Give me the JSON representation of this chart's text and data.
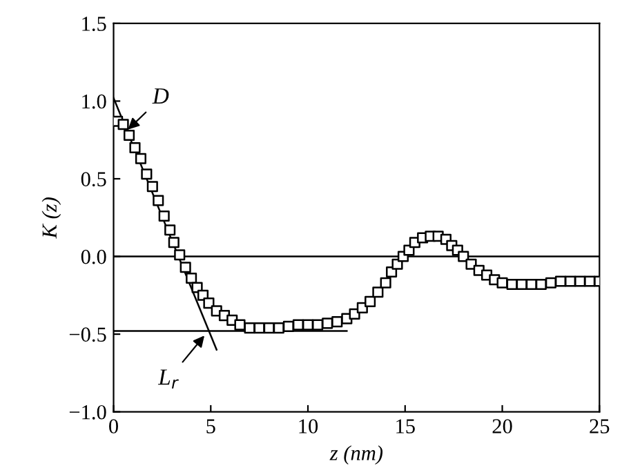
{
  "chart_data": {
    "type": "scatter",
    "xlabel": "z (nm)",
    "ylabel": "K (z)",
    "grid": false,
    "legend": false,
    "xlim": [
      0,
      25
    ],
    "xticks": [
      0,
      5,
      10,
      15,
      20,
      25
    ],
    "ylim": [
      -1.0,
      1.5
    ],
    "yticks": [
      {
        "value": -1.0,
        "label": "−1.0"
      },
      {
        "value": -0.5,
        "label": "−0.5"
      },
      {
        "value": 0.0,
        "label": "0.0"
      },
      {
        "value": 0.5,
        "label": "0.5"
      },
      {
        "value": 1.0,
        "label": "1.0"
      },
      {
        "value": 1.5,
        "label": "1.5"
      }
    ],
    "ref_lines": [
      {
        "axis": "y",
        "value": 0,
        "color": "#000000"
      }
    ],
    "series": [
      {
        "marker": "square",
        "color": "#000000",
        "x": [
          0.2,
          0.5,
          0.8,
          1.1,
          1.4,
          1.7,
          2.0,
          2.3,
          2.6,
          2.9,
          3.1,
          3.4,
          3.7,
          4.0,
          4.3,
          4.6,
          4.9,
          5.3,
          5.7,
          6.1,
          6.5,
          7.0,
          7.5,
          8.0,
          8.5,
          9.0,
          9.5,
          10.0,
          10.5,
          11.0,
          11.5,
          12.0,
          12.4,
          12.8,
          13.2,
          13.6,
          14.0,
          14.3,
          14.6,
          14.9,
          15.2,
          15.5,
          15.9,
          16.3,
          16.7,
          17.1,
          17.4,
          17.7,
          18.0,
          18.4,
          18.8,
          19.2,
          19.6,
          20.0,
          20.5,
          21.0,
          21.5,
          22.0,
          22.5,
          23.0,
          23.5,
          24.0,
          24.5,
          25.0
        ],
        "values": [
          0.87,
          0.85,
          0.78,
          0.7,
          0.63,
          0.53,
          0.45,
          0.36,
          0.26,
          0.17,
          0.09,
          0.01,
          -0.07,
          -0.14,
          -0.2,
          -0.25,
          -0.3,
          -0.35,
          -0.38,
          -0.41,
          -0.44,
          -0.46,
          -0.46,
          -0.46,
          -0.46,
          -0.45,
          -0.44,
          -0.44,
          -0.44,
          -0.43,
          -0.42,
          -0.4,
          -0.37,
          -0.33,
          -0.29,
          -0.23,
          -0.17,
          -0.1,
          -0.05,
          0.0,
          0.04,
          0.09,
          0.12,
          0.13,
          0.13,
          0.11,
          0.07,
          0.04,
          0.0,
          -0.05,
          -0.09,
          -0.12,
          -0.15,
          -0.17,
          -0.18,
          -0.18,
          -0.18,
          -0.18,
          -0.17,
          -0.16,
          -0.16,
          -0.16,
          -0.16,
          -0.16
        ]
      },
      {
        "type": "line",
        "marker": "none",
        "color": "#000000",
        "x": [
          0,
          5.3
        ],
        "values": [
          1.02,
          -0.6
        ]
      },
      {
        "type": "line",
        "marker": "none",
        "color": "#000000",
        "x": [
          0,
          12
        ],
        "values": [
          -0.48,
          -0.48
        ]
      }
    ],
    "annotations": [
      {
        "text": "D",
        "x": 0.6,
        "y": 0.8
      },
      {
        "text": "L$_{r}$",
        "x": 4.8,
        "y": -0.49
      }
    ]
  }
}
